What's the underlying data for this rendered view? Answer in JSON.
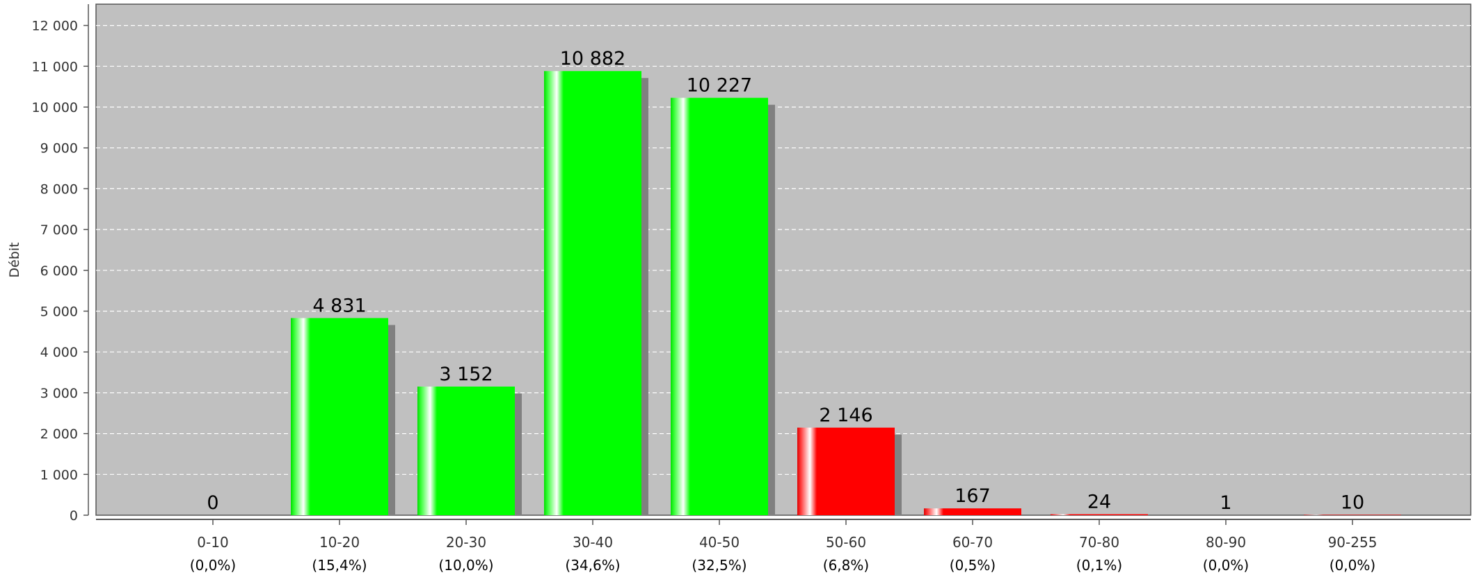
{
  "chart_data": {
    "type": "bar",
    "ylabel": "Débit",
    "xlabel": "",
    "ylim": [
      0,
      12500
    ],
    "yticks": [
      0,
      1000,
      2000,
      3000,
      4000,
      5000,
      6000,
      7000,
      8000,
      9000,
      10000,
      11000,
      12000
    ],
    "ytick_labels": [
      "0",
      "1 000",
      "2 000",
      "3 000",
      "4 000",
      "5 000",
      "6 000",
      "7 000",
      "8 000",
      "9 000",
      "10 000",
      "11 000",
      "12 000"
    ],
    "categories": [
      "0-10",
      "10-20",
      "20-30",
      "30-40",
      "40-50",
      "50-60",
      "60-70",
      "70-80",
      "80-90",
      "90-255"
    ],
    "values": [
      0,
      4831,
      3152,
      10882,
      10227,
      2146,
      167,
      24,
      1,
      10
    ],
    "value_labels": [
      "0",
      "4 831",
      "3 152",
      "10 882",
      "10 227",
      "2 146",
      "167",
      "24",
      "1",
      "10"
    ],
    "percent_labels": [
      "(0,0%)",
      "(15,4%)",
      "(10,0%)",
      "(34,6%)",
      "(32,5%)",
      "(6,8%)",
      "(0,5%)",
      "(0,1%)",
      "(0,0%)",
      "(0,0%)"
    ],
    "bar_colors": [
      "#00ff00",
      "#00ff00",
      "#00ff00",
      "#00ff00",
      "#00ff00",
      "#ff0000",
      "#ff0000",
      "#ff0000",
      "#ff0000",
      "#ff0000"
    ],
    "grid": true,
    "legend": false
  },
  "colors": {
    "plot_background": "#c0c0c0",
    "grid": "#ffffff",
    "shadow": "#808080",
    "axis": "#555555"
  }
}
